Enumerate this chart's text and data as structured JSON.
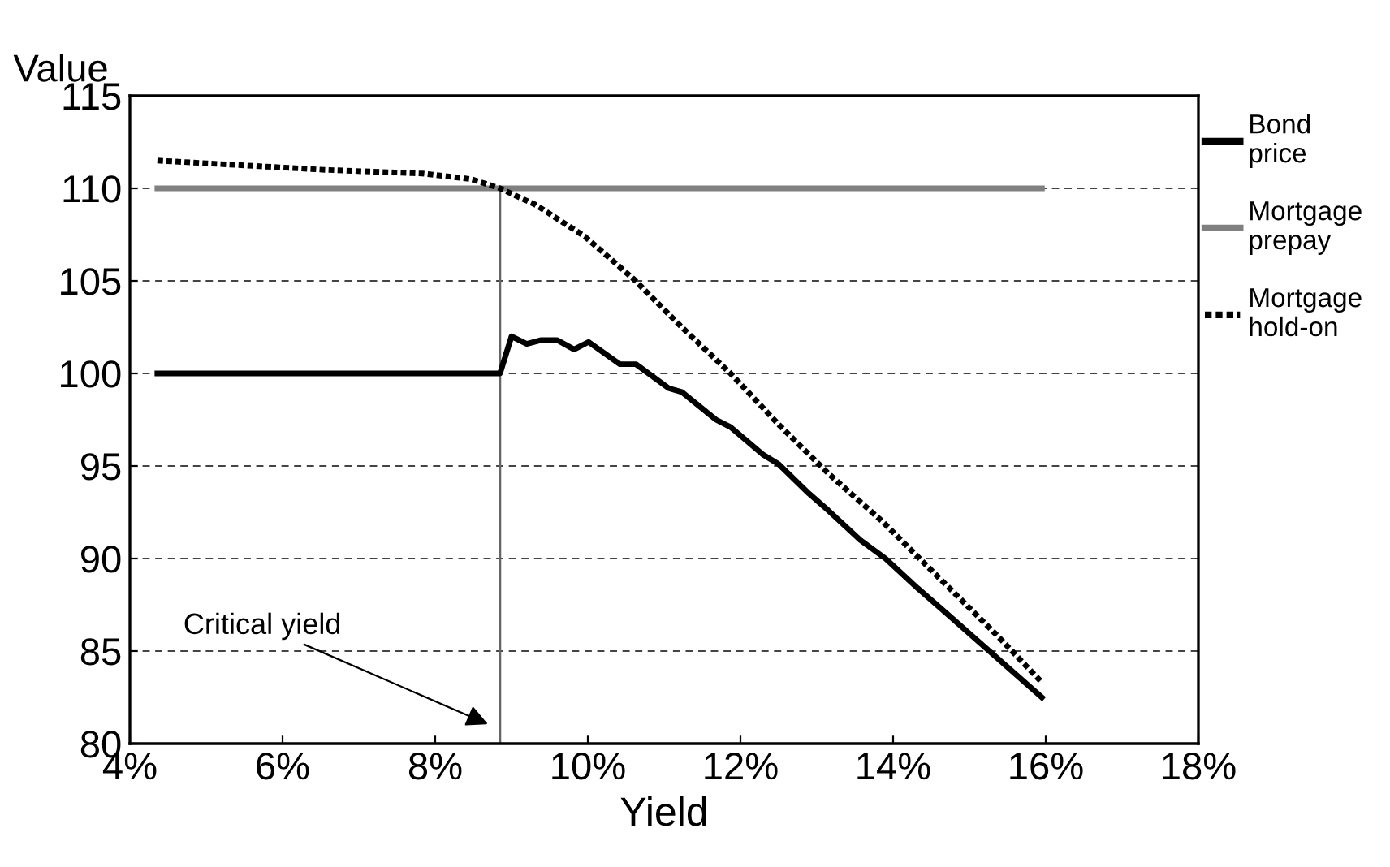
{
  "chart_data": {
    "type": "line",
    "xlabel": "Yield",
    "ylabel": "Value",
    "xlim": [
      4,
      18
    ],
    "xticks": [
      {
        "value": 4,
        "label": "4%"
      },
      {
        "value": 6,
        "label": "6%"
      },
      {
        "value": 8,
        "label": "8%"
      },
      {
        "value": 10,
        "label": "10%"
      },
      {
        "value": 12,
        "label": "12%"
      },
      {
        "value": 14,
        "label": "14%"
      },
      {
        "value": 16,
        "label": "16%"
      },
      {
        "value": 18,
        "label": "18%"
      }
    ],
    "ylim": [
      80,
      115
    ],
    "yticks": [
      80,
      85,
      90,
      95,
      100,
      105,
      110,
      115
    ],
    "grid": "y",
    "legend": "right",
    "marker": "none",
    "series": [
      {
        "name": "Bond price",
        "color": "#000000",
        "line_style": "solid",
        "x": [
          4.36,
          8.85,
          9.0,
          9.2,
          9.39,
          9.6,
          9.82,
          10.01,
          10.42,
          10.63,
          11.06,
          11.23,
          11.68,
          11.87,
          12.3,
          12.5,
          12.9,
          13.15,
          13.57,
          13.9,
          14.32,
          14.71,
          15.95
        ],
        "values": [
          100,
          100,
          102.0,
          101.6,
          101.8,
          101.8,
          101.3,
          101.7,
          100.5,
          100.5,
          99.2,
          99.0,
          97.5,
          97.1,
          95.6,
          95.1,
          93.5,
          92.6,
          91.0,
          90.0,
          88.4,
          87.0,
          82.5
        ]
      },
      {
        "name": "Mortgage prepay",
        "color": "#808080",
        "line_style": "solid",
        "x": [
          4.36,
          15.95
        ],
        "values": [
          110,
          110
        ]
      },
      {
        "name": "Mortgage hold-on",
        "color": "#000000",
        "line_style": "dotted",
        "x": [
          4.36,
          6.55,
          7.83,
          8.47,
          8.85,
          9.32,
          9.96,
          10.6,
          11.23,
          11.87,
          12.51,
          13.15,
          13.86,
          14.64,
          15.35,
          15.95
        ],
        "values": [
          111.5,
          111.0,
          110.8,
          110.5,
          110.0,
          109.1,
          107.4,
          105.1,
          102.5,
          100.0,
          97.2,
          94.6,
          92.0,
          88.8,
          85.9,
          83.3
        ]
      },
      {
        "color": "#666666",
        "line_style": "solid",
        "x": [
          8.85,
          8.85
        ],
        "values": [
          80,
          110
        ]
      }
    ],
    "annotations": [
      "Critical yield"
    ]
  }
}
